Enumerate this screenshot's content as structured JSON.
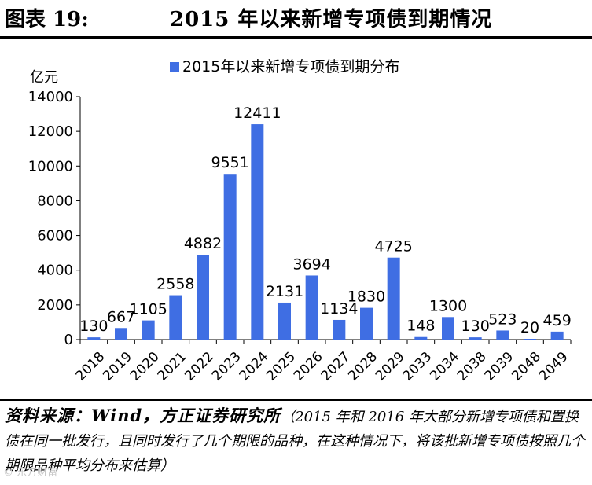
{
  "header": {
    "label": "图表 19:",
    "title": "2015 年以来新增专项债到期情况"
  },
  "chart_data": {
    "type": "bar",
    "title": "",
    "legend": "2015年以来新增专项债到期分布",
    "legend_position": "top",
    "unit_label": "亿元",
    "xlabel": "",
    "ylabel": "亿元",
    "ylim": [
      0,
      14000
    ],
    "yticks": [
      "0",
      "2000",
      "4000",
      "6000",
      "8000",
      "10000",
      "12000",
      "14000"
    ],
    "grid": false,
    "bar_color": "#3f6ee3",
    "categories": [
      "2018",
      "2019",
      "2020",
      "2021",
      "2022",
      "2023",
      "2024",
      "2025",
      "2026",
      "2027",
      "2028",
      "2029",
      "2033",
      "2034",
      "2038",
      "2039",
      "2048",
      "2049"
    ],
    "values": [
      130,
      667,
      1105,
      2558,
      4882,
      9551,
      12411,
      2131,
      3694,
      1134,
      1830,
      4725,
      148,
      1300,
      130,
      523,
      20,
      459
    ],
    "value_labels": [
      "130",
      "667",
      "1105",
      "2558",
      "4882",
      "9551",
      "12411",
      "2131",
      "3694",
      "1134",
      "1830",
      "4725",
      "148",
      "1300",
      "130",
      "523",
      "20",
      "459"
    ]
  },
  "source": {
    "main": "资料来源：Wind，方正证券研究所",
    "note": "（2015 年和 2016 年大部分新增专项债和置换债在同一批发行，且同时发行了几个期限的品种，在这种情况下，将该批新增专项债按照几个期限品种平均分布来估算）"
  },
  "watermark": "© 东方财富"
}
